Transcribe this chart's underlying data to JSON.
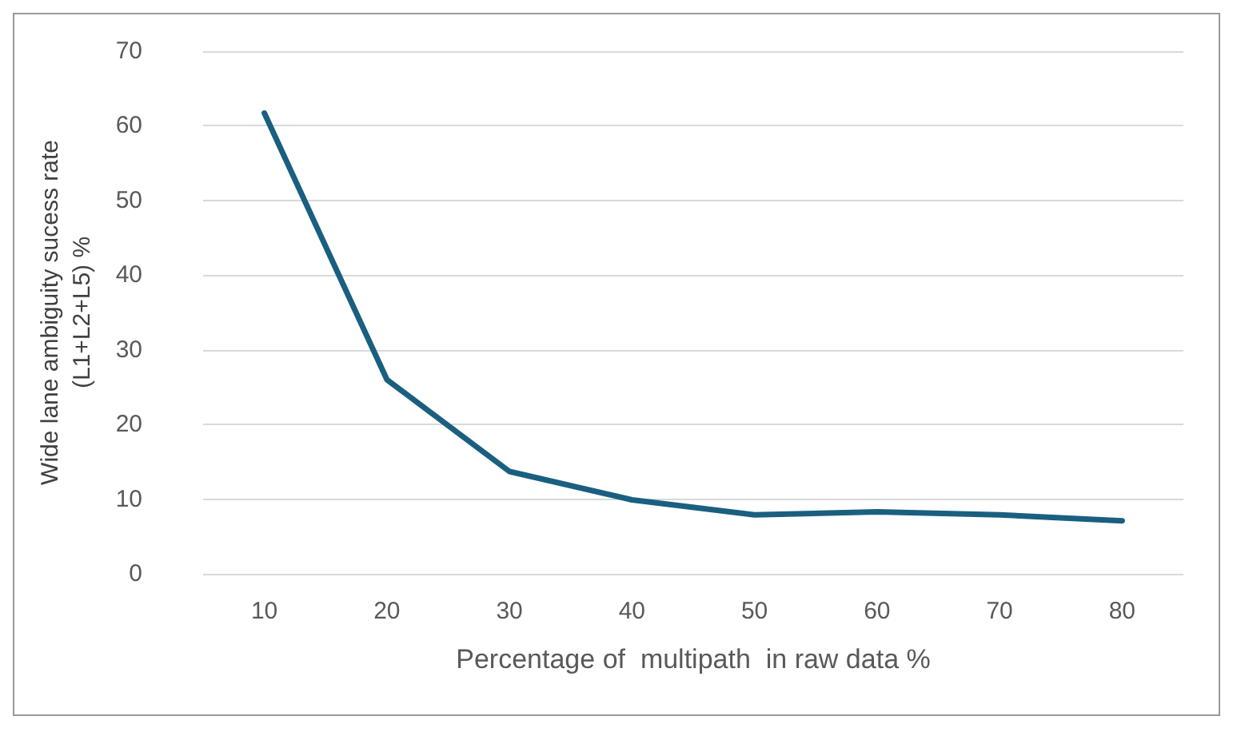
{
  "chart_data": {
    "type": "line",
    "xlabel": "Percentage of  multipath  in raw data %",
    "ylabel": "Wide lane ambiguity sucess rate\n(L1+L2+L5) %",
    "categories": [
      "10",
      "20",
      "30",
      "40",
      "50",
      "60",
      "70",
      "80"
    ],
    "series": [
      {
        "color": "#1a5f80",
        "values": [
          61.7,
          26,
          13.7,
          9.9,
          7.9,
          8.3,
          7.9,
          7.1
        ]
      }
    ],
    "ylim": [
      0,
      70
    ],
    "yticks": [
      0,
      10,
      20,
      30,
      40,
      50,
      60,
      70
    ],
    "grid": "y",
    "marker": "none",
    "line_style": "solid"
  }
}
